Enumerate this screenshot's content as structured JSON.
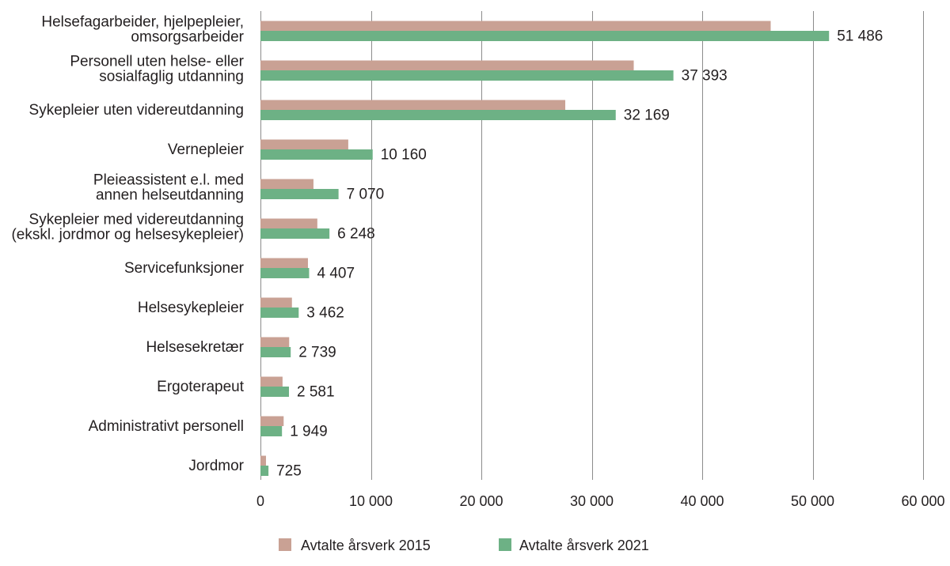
{
  "chart_data": {
    "type": "bar",
    "orientation": "horizontal",
    "categories": [
      "Helsefagarbeider, hjelpepleier,\nomsorgsarbeider",
      "Personell uten helse- eller\nsosialfaglig utdanning",
      "Sykepleier uten videreutdanning",
      "Vernepleier",
      "Pleieassistent e.l. med\nannen helseutdanning",
      "Sykepleier med videreutdanning\n(ekskl. jordmor og helsesykepleier)",
      "Servicefunksjoner",
      "Helsesykepleier",
      "Helsesekretær",
      "Ergoterapeut",
      "Administrativt personell",
      "Jordmor"
    ],
    "series": [
      {
        "name": "Avtalte årsverk 2015",
        "color": "#c9a194",
        "data_labels": false,
        "values": [
          46200,
          33800,
          27600,
          7950,
          4800,
          5150,
          4300,
          2850,
          2600,
          2000,
          2100,
          500
        ]
      },
      {
        "name": "Avtalte årsverk 2021",
        "color": "#6db185",
        "data_labels": true,
        "values": [
          51486,
          37393,
          32169,
          10160,
          7070,
          6248,
          4407,
          3462,
          2739,
          2581,
          1949,
          725
        ]
      }
    ],
    "xlim": [
      0,
      60000
    ],
    "xticks": [
      0,
      10000,
      20000,
      30000,
      40000,
      50000,
      60000
    ],
    "grid": true,
    "legend": "bottom"
  }
}
